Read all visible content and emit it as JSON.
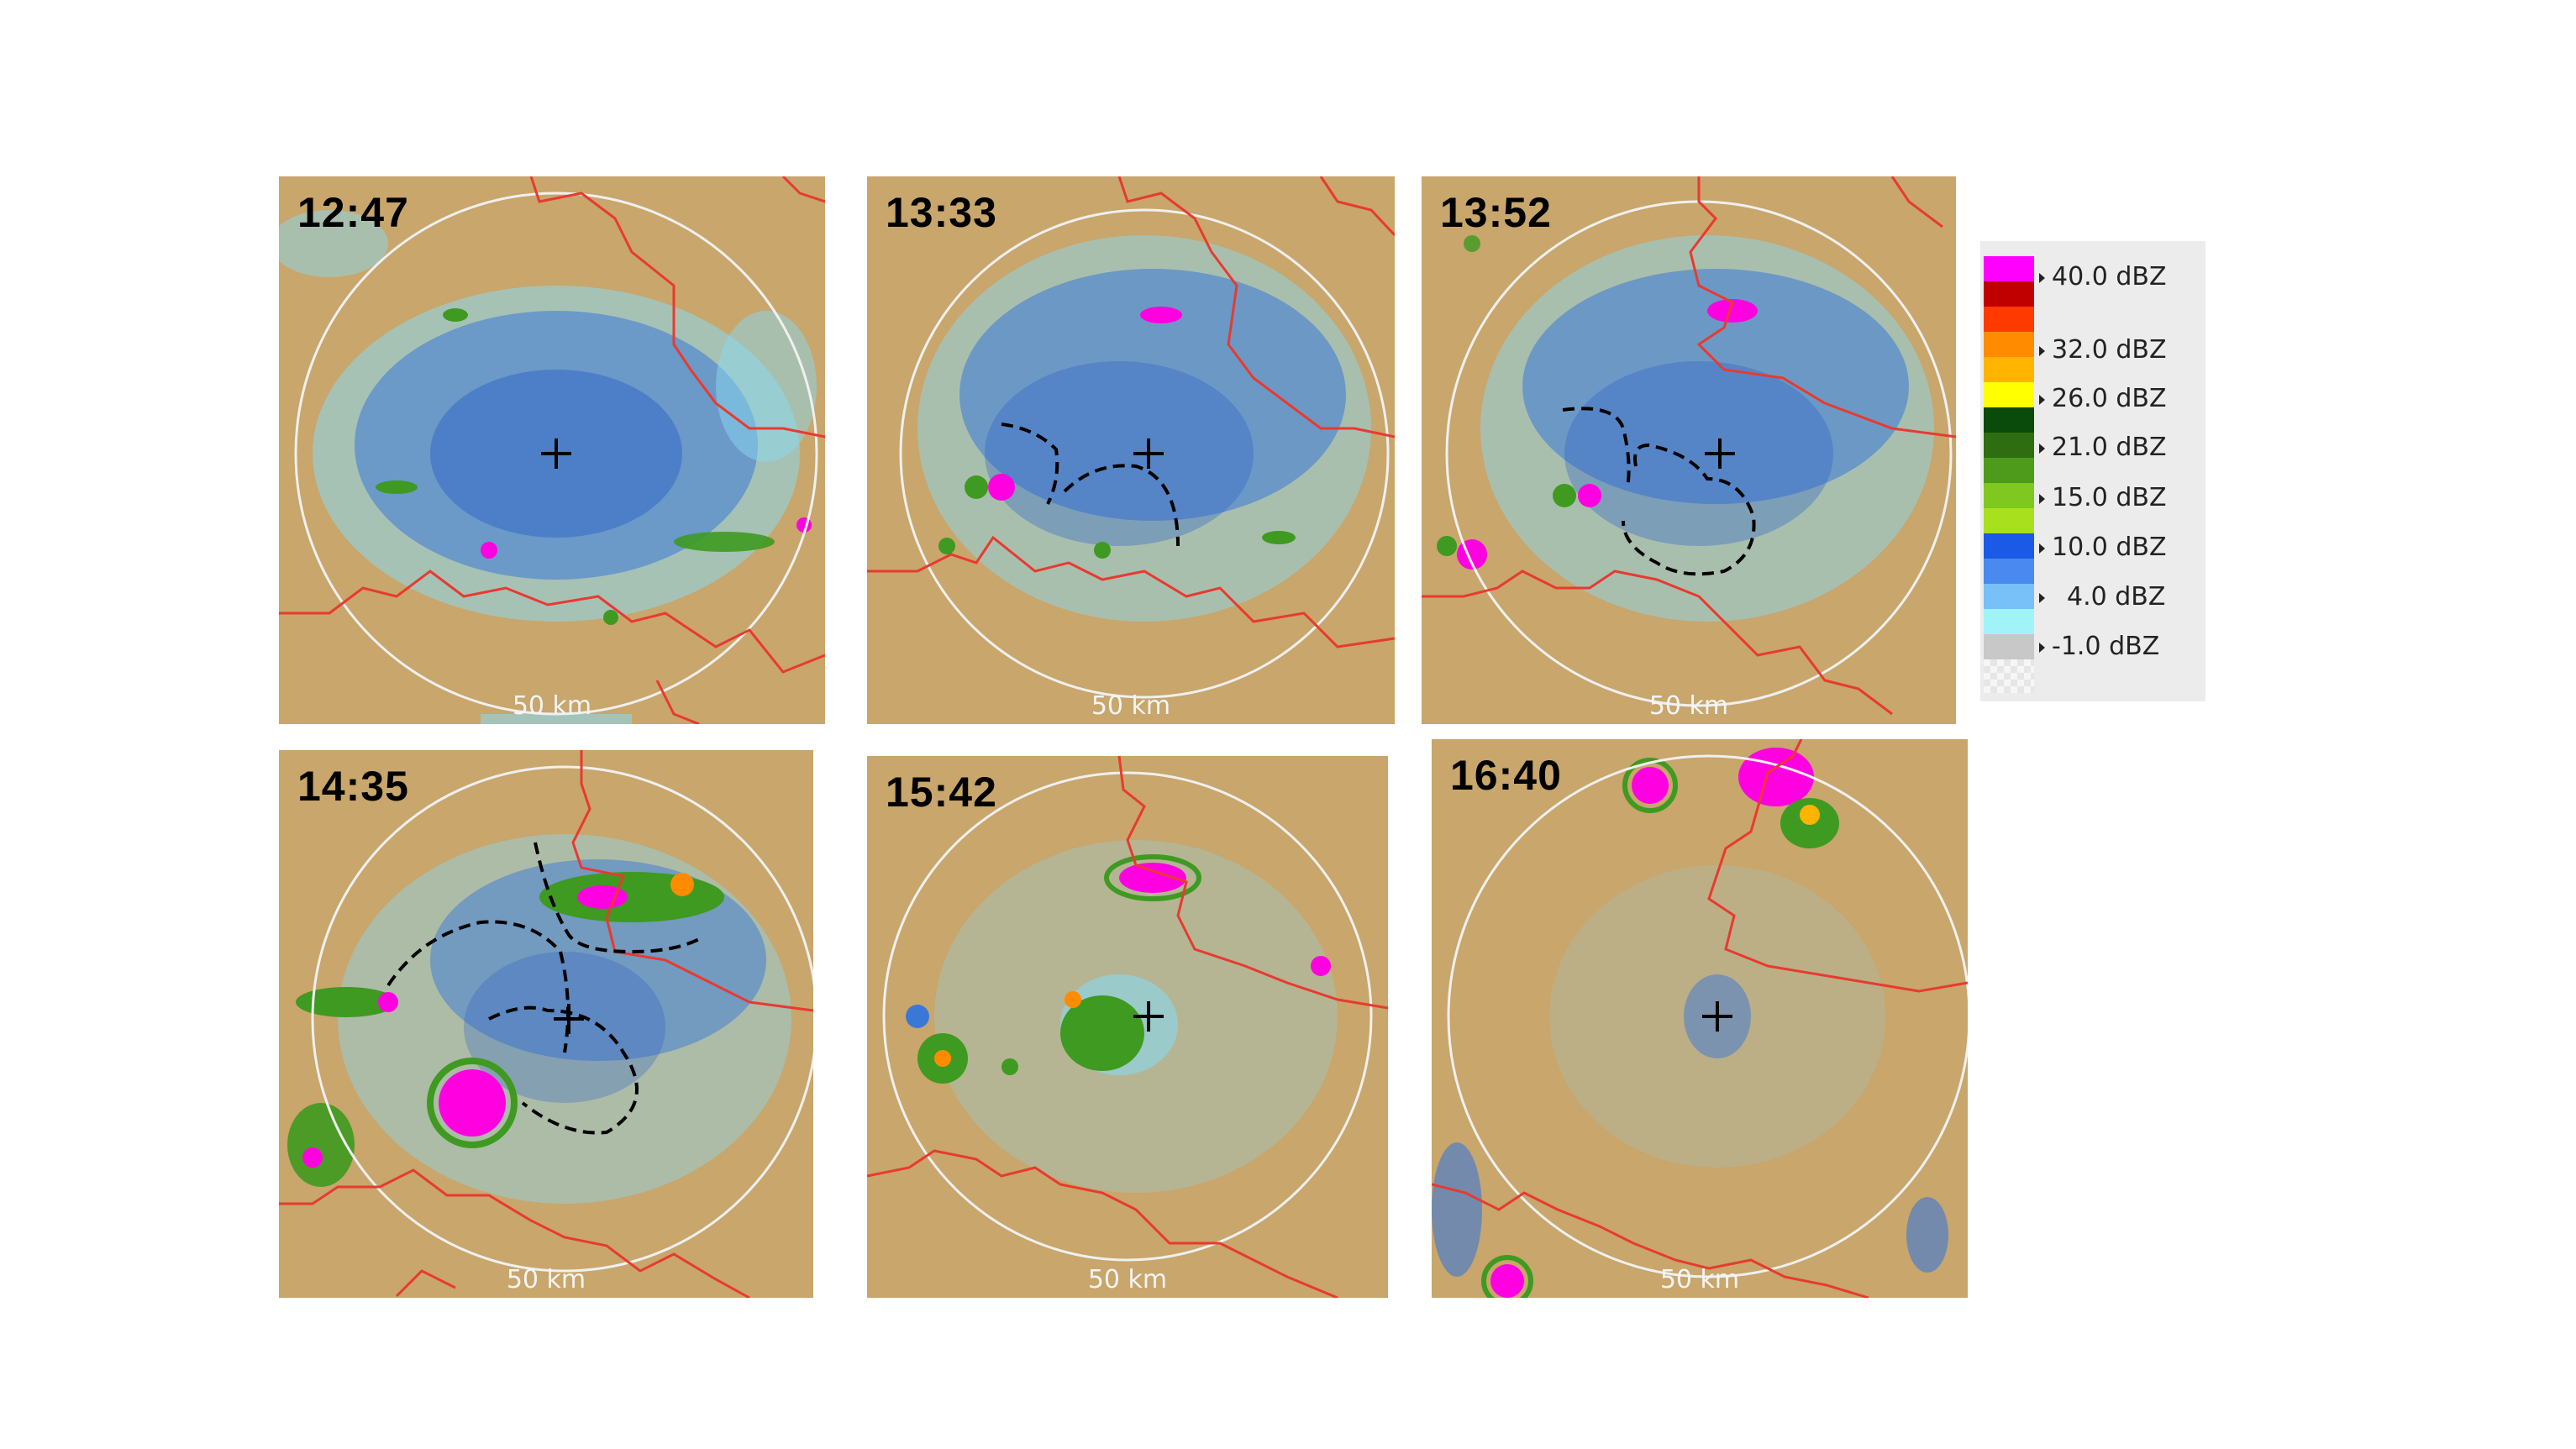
{
  "panels": [
    {
      "time": "12:47",
      "range_label": "50 km"
    },
    {
      "time": "13:33",
      "range_label": "50 km"
    },
    {
      "time": "13:52",
      "range_label": "50 km"
    },
    {
      "time": "14:35",
      "range_label": "50 km"
    },
    {
      "time": "15:42",
      "range_label": "50 km"
    },
    {
      "time": "16:40",
      "range_label": "50 km"
    }
  ],
  "legend": {
    "entries": [
      "40.0 dBZ",
      "32.0 dBZ",
      "26.0 dBZ",
      "21.0 dBZ",
      "15.0 dBZ",
      "10.0 dBZ",
      "4.0 dBZ",
      "-1.0 dBZ"
    ],
    "colors": [
      "#ff00ff",
      "#c00000",
      "#ff3a00",
      "#ff8c00",
      "#ffb400",
      "#ffff00",
      "#0a4a0a",
      "#2e6e10",
      "#4e9a1a",
      "#7ec820",
      "#a8e01e",
      "#1a5ae6",
      "#4a8af0",
      "#78c0f8",
      "#a0f4f8",
      "#c8c8c8"
    ]
  },
  "colors": {
    "background": "#c8a66c",
    "border": "#e83a30",
    "range_ring": "#f0f0f0",
    "echo_light": "#8ad8f0",
    "echo_blue": "#3a78d8",
    "echo_green": "#3e9a20",
    "echo_magenta": "#ff00e0"
  }
}
